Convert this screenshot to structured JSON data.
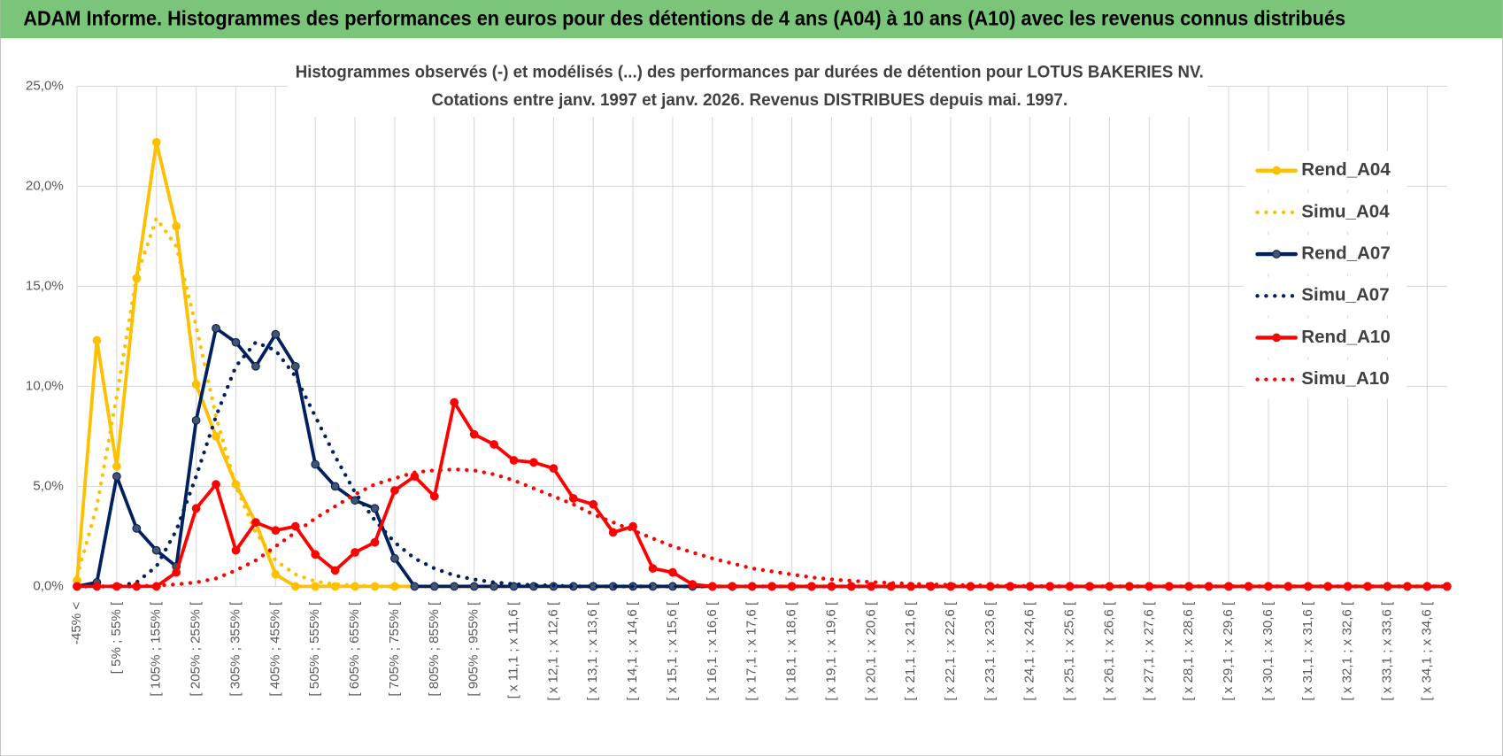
{
  "header": {
    "title": "ADAM Informe. Histogrammes des performances en euros pour des détentions de 4 ans (A04) à 10 ans (A10) avec les revenus connus distribués"
  },
  "chart_data": {
    "type": "line",
    "title": "Histogrammes observés (-) et modélisés (...) des performances par durées de détention pour LOTUS BAKERIES NV.",
    "subtitle": "Cotations entre janv. 1997 et janv. 2026. Revenus DISTRIBUES depuis mai. 1997.",
    "categories": [
      "-45% <",
      null,
      "[ 5% ; 55% [",
      null,
      "[ 105% ; 155% [",
      null,
      "[ 205% ; 255% [",
      null,
      "[ 305% ; 355% [",
      null,
      "[ 405% ; 455% [",
      null,
      "[ 505% ; 555% [",
      null,
      "[ 605% ; 655% [",
      null,
      "[ 705% ; 755% [",
      null,
      "[ 805% ; 855% [",
      null,
      "[ 905% ; 955% [",
      null,
      "[ x 11,1 ; x 11,6 [",
      null,
      "[ x 12,1 ; x 12,6 [",
      null,
      "[ x 13,1 ; x 13,6 [",
      null,
      "[ x 14,1 ; x 14,6 [",
      null,
      "[ x 15,1 ; x 15,6 [",
      null,
      "[ x 16,1 ; x 16,6 [",
      null,
      "[ x 17,1 ; x 17,6 [",
      null,
      "[ x 18,1 ; x 18,6 [",
      null,
      "[ x 19,1 ; x 19,6 [",
      null,
      "[ x 20,1 ; x 20,6 [",
      null,
      "[ x 21,1 ; x 21,6 [",
      null,
      "[ x 22,1 ; x 22,6 [",
      null,
      "[ x 23,1 ; x 23,6 [",
      null,
      "[ x 24,1 ; x 24,6 [",
      null,
      "[ x 25,1 ; x 25,6 [",
      null,
      "[ x 26,1 ; x 26,6 [",
      null,
      "[ x 27,1 ; x 27,6 [",
      null,
      "[ x 28,1 ; x 28,6 [",
      null,
      "[ x 29,1 ; x 29,6 [",
      null,
      "[ x 30,1 ; x 30,6 [",
      null,
      "[ x 31,1 ; x 31,6 [",
      null,
      "[ x 32,1 ; x 32,6 [",
      null,
      "[ x 33,1 ; x 33,6 [",
      null,
      "[ x 34,1 ; x 34,6 [",
      null
    ],
    "series": [
      {
        "name": "Rend_A04",
        "color": "#ffc000",
        "style": "solid",
        "markers": true,
        "values": [
          0.3,
          12.3,
          6.0,
          15.4,
          22.2,
          18.0,
          10.1,
          7.5,
          5.1,
          3.2,
          0.6,
          0,
          0,
          0,
          0,
          0,
          0,
          0,
          0,
          0,
          0,
          0,
          0,
          0,
          0,
          0,
          0,
          0,
          0,
          0,
          0,
          0,
          0,
          0,
          0,
          0,
          0,
          0,
          0,
          0,
          0,
          0,
          0,
          0,
          0,
          0,
          0,
          0,
          0,
          0,
          0,
          0,
          0,
          0,
          0,
          0,
          0,
          0,
          0,
          0,
          0,
          0,
          0,
          0,
          0,
          0,
          0,
          0,
          0,
          0
        ]
      },
      {
        "name": "Simu_A04",
        "color": "#ffc000",
        "style": "dotted",
        "markers": false,
        "values": [
          0.5,
          4.0,
          9.5,
          15.5,
          18.4,
          17.0,
          13.0,
          8.5,
          5.0,
          2.7,
          1.3,
          0.6,
          0.25,
          0.1,
          0.05,
          0,
          0,
          0,
          0,
          0,
          0,
          0,
          0,
          0,
          0,
          0,
          0,
          0,
          0,
          0,
          0,
          0,
          0,
          0,
          0,
          0,
          0,
          0,
          0,
          0,
          0,
          0,
          0,
          0,
          0,
          0,
          0,
          0,
          0,
          0,
          0,
          0,
          0,
          0,
          0,
          0,
          0,
          0,
          0,
          0,
          0,
          0,
          0,
          0,
          0,
          0,
          0,
          0,
          0,
          0
        ]
      },
      {
        "name": "Rend_A07",
        "color": "#002060",
        "style": "solid",
        "markers": true,
        "values": [
          0,
          0.2,
          5.5,
          2.9,
          1.8,
          1.0,
          8.3,
          12.9,
          12.2,
          11.0,
          12.6,
          11.0,
          6.1,
          5.0,
          4.3,
          3.9,
          1.4,
          0,
          0,
          0,
          0,
          0,
          0,
          0,
          0,
          0,
          0,
          0,
          0,
          0,
          0,
          0,
          0,
          0,
          0,
          0,
          0,
          0,
          0,
          0,
          0,
          0,
          0,
          0,
          0,
          0,
          0,
          0,
          0,
          0,
          0,
          0,
          0,
          0,
          0,
          0,
          0,
          0,
          0,
          0,
          0,
          0,
          0,
          0,
          0,
          0,
          0,
          0,
          0,
          0
        ]
      },
      {
        "name": "Simu_A07",
        "color": "#002060",
        "style": "dotted",
        "markers": false,
        "values": [
          0,
          0,
          0,
          0.2,
          1.0,
          2.8,
          5.5,
          8.5,
          11.0,
          12.2,
          11.8,
          10.5,
          8.5,
          6.5,
          4.7,
          3.3,
          2.2,
          1.4,
          0.9,
          0.55,
          0.35,
          0.2,
          0.12,
          0.07,
          0.04,
          0,
          0,
          0,
          0,
          0,
          0,
          0,
          0,
          0,
          0,
          0,
          0,
          0,
          0,
          0,
          0,
          0,
          0,
          0,
          0,
          0,
          0,
          0,
          0,
          0,
          0,
          0,
          0,
          0,
          0,
          0,
          0,
          0,
          0,
          0,
          0,
          0,
          0,
          0,
          0,
          0,
          0,
          0,
          0,
          0
        ]
      },
      {
        "name": "Rend_A10",
        "color": "#ff0000",
        "style": "solid",
        "markers": true,
        "values": [
          0,
          0,
          0,
          0,
          0,
          0.7,
          3.9,
          5.1,
          1.8,
          3.2,
          2.8,
          3.0,
          1.6,
          0.8,
          1.7,
          2.2,
          4.8,
          5.5,
          4.5,
          9.2,
          7.6,
          7.1,
          6.3,
          6.2,
          5.9,
          4.4,
          4.1,
          2.7,
          3.0,
          0.9,
          0.7,
          0.1,
          0,
          0,
          0,
          0,
          0,
          0,
          0,
          0,
          0,
          0,
          0,
          0,
          0,
          0,
          0,
          0,
          0,
          0,
          0,
          0,
          0,
          0,
          0,
          0,
          0,
          0,
          0,
          0,
          0,
          0,
          0,
          0,
          0,
          0,
          0,
          0,
          0,
          0
        ]
      },
      {
        "name": "Simu_A10",
        "color": "#ff0000",
        "style": "dotted",
        "markers": false,
        "values": [
          0,
          0,
          0,
          0,
          0.05,
          0.1,
          0.2,
          0.4,
          0.8,
          1.3,
          2.0,
          2.7,
          3.4,
          4.0,
          4.6,
          5.1,
          5.4,
          5.7,
          5.8,
          5.85,
          5.8,
          5.6,
          5.3,
          4.9,
          4.5,
          4.1,
          3.6,
          3.2,
          2.8,
          2.4,
          2.0,
          1.7,
          1.4,
          1.15,
          0.9,
          0.75,
          0.6,
          0.45,
          0.35,
          0.28,
          0.22,
          0.17,
          0.13,
          0.1,
          0.08,
          0.06,
          0.04,
          0.03,
          0.02,
          0,
          0,
          0,
          0,
          0,
          0,
          0,
          0,
          0,
          0,
          0,
          0,
          0,
          0,
          0,
          0,
          0,
          0,
          0,
          0,
          0
        ]
      }
    ],
    "ylim": [
      0,
      25
    ],
    "yticks": [
      {
        "value": 0,
        "label": "0,0%"
      },
      {
        "value": 5,
        "label": "5,0%"
      },
      {
        "value": 10,
        "label": "10,0%"
      },
      {
        "value": 15,
        "label": "15,0%"
      },
      {
        "value": 20,
        "label": "20,0%"
      },
      {
        "value": 25,
        "label": "25,0%"
      }
    ],
    "grid": true,
    "legend": "right"
  }
}
